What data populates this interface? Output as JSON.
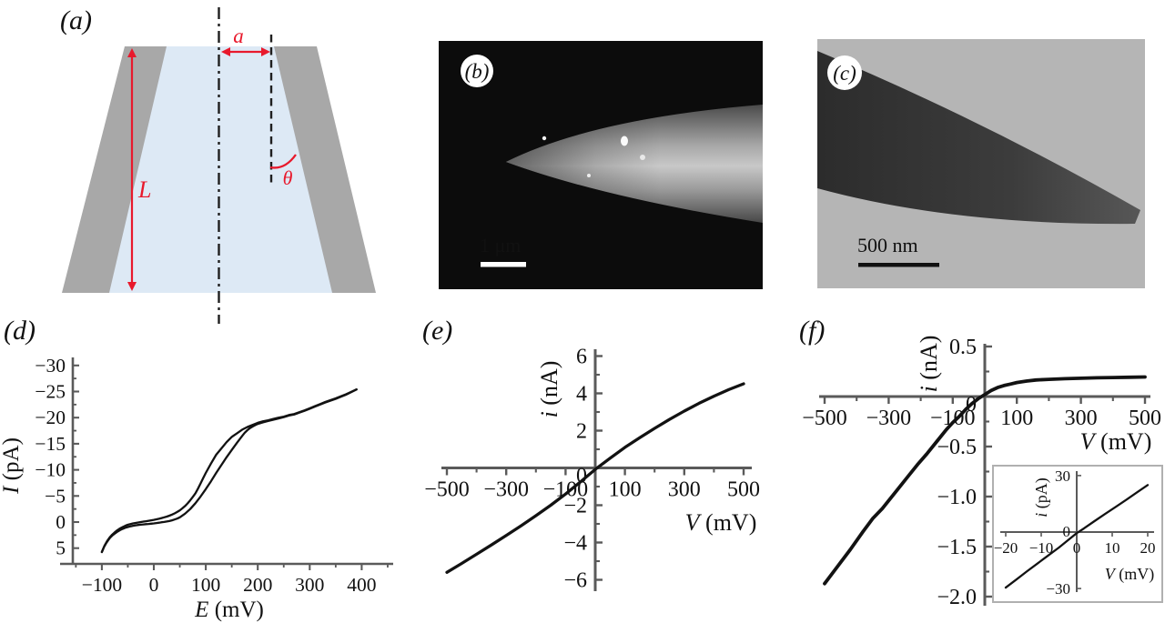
{
  "figure": {
    "description": "Six-panel nanopipette figure: schematic, SEM image, TEM image and three current-voltage plots",
    "colors": {
      "annotation_red": "#e8192c",
      "wall_gray": "#a8a8a8",
      "lumen_blue": "#dde9f5",
      "axis_gray": "#5a5a5a",
      "curve_black": "#121212",
      "sem_background": "#0c0c0c",
      "tem_background": "#b5b5b5"
    },
    "panel_a": {
      "label": "(a)",
      "radius_label": "a",
      "length_label": "L",
      "angle_label": "θ"
    },
    "panel_b": {
      "label": "(b)",
      "scale_bar_text": "1 μm"
    },
    "panel_c": {
      "label": "(c)",
      "scale_bar_text": "500 nm"
    },
    "panel_d": {
      "label": "(d)"
    },
    "panel_e": {
      "label": "(e)"
    },
    "panel_f": {
      "label": "(f)"
    }
  },
  "chart_data": [
    {
      "id": "d",
      "type": "line",
      "title": "",
      "xlabel": {
        "variable": "E",
        "unit": " (mV)"
      },
      "ylabel": {
        "variable": "I",
        "unit": " (pA)"
      },
      "x_axis": {
        "range": [
          -125,
          460
        ],
        "tick_values": [
          -100,
          0,
          100,
          200,
          300,
          400
        ],
        "tick_labels": [
          "−100",
          "0",
          "100",
          "200",
          "300",
          "400"
        ],
        "minor_tick_values": [
          -150,
          -50,
          50,
          150,
          250,
          350,
          450
        ]
      },
      "y_axis": {
        "range": [
          -30,
          5
        ],
        "inverted": true,
        "tick_values": [
          -30,
          -25,
          -20,
          -15,
          -10,
          -5,
          0,
          5
        ],
        "tick_labels": [
          "−30",
          "−25",
          "−20",
          "−15",
          "−10",
          "−5",
          "0",
          "5"
        ],
        "minor_tick_values": [
          -27.5,
          -22.5,
          -17.5,
          -12.5,
          -7.5,
          -2.5,
          2.5
        ]
      },
      "grid": false,
      "series": [
        {
          "name": "forward-sweep",
          "points": [
            [
              -100,
              5.75
            ],
            [
              -96,
              4.8
            ],
            [
              -92,
              4.1
            ],
            [
              -88,
              3.5
            ],
            [
              -84,
              3.0
            ],
            [
              -80,
              2.6
            ],
            [
              -75,
              2.2
            ],
            [
              -70,
              1.85
            ],
            [
              -65,
              1.55
            ],
            [
              -60,
              1.3
            ],
            [
              -55,
              1.1
            ],
            [
              -50,
              0.95
            ],
            [
              -45,
              0.82
            ],
            [
              -40,
              0.72
            ],
            [
              -35,
              0.63
            ],
            [
              -30,
              0.56
            ],
            [
              -25,
              0.5
            ],
            [
              -20,
              0.45
            ],
            [
              -15,
              0.4
            ],
            [
              -10,
              0.36
            ],
            [
              -5,
              0.32
            ],
            [
              0,
              0.27
            ],
            [
              5,
              0.2
            ],
            [
              10,
              0.12
            ],
            [
              15,
              0.04
            ],
            [
              20,
              -0.02
            ],
            [
              25,
              -0.1
            ],
            [
              30,
              -0.2
            ],
            [
              35,
              -0.33
            ],
            [
              40,
              -0.48
            ],
            [
              45,
              -0.67
            ],
            [
              50,
              -0.9
            ],
            [
              60,
              -1.6
            ],
            [
              70,
              -2.5
            ],
            [
              80,
              -3.6
            ],
            [
              90,
              -4.9
            ],
            [
              100,
              -6.3
            ],
            [
              110,
              -7.8
            ],
            [
              120,
              -9.4
            ],
            [
              130,
              -10.9
            ],
            [
              140,
              -12.4
            ],
            [
              150,
              -13.8
            ],
            [
              160,
              -15.2
            ],
            [
              170,
              -16.5
            ],
            [
              175,
              -17.1
            ],
            [
              180,
              -17.6
            ],
            [
              185,
              -18.0
            ],
            [
              190,
              -18.3
            ],
            [
              195,
              -18.55
            ],
            [
              200,
              -18.8
            ],
            [
              210,
              -19.1
            ],
            [
              220,
              -19.35
            ],
            [
              230,
              -19.6
            ],
            [
              240,
              -19.85
            ],
            [
              250,
              -20.1
            ],
            [
              260,
              -20.4
            ],
            [
              270,
              -20.6
            ],
            [
              280,
              -20.95
            ],
            [
              290,
              -21.3
            ],
            [
              300,
              -21.7
            ],
            [
              310,
              -22.1
            ],
            [
              320,
              -22.5
            ],
            [
              330,
              -22.9
            ],
            [
              340,
              -23.25
            ],
            [
              350,
              -23.6
            ],
            [
              360,
              -24.0
            ],
            [
              370,
              -24.4
            ],
            [
              380,
              -24.9
            ],
            [
              390,
              -25.4
            ]
          ]
        },
        {
          "name": "reverse-sweep",
          "points": [
            [
              -100,
              5.75
            ],
            [
              -95,
              4.55
            ],
            [
              -90,
              3.65
            ],
            [
              -85,
              2.95
            ],
            [
              -80,
              2.4
            ],
            [
              -75,
              1.95
            ],
            [
              -70,
              1.55
            ],
            [
              -65,
              1.22
            ],
            [
              -60,
              0.95
            ],
            [
              -55,
              0.72
            ],
            [
              -50,
              0.53
            ],
            [
              -45,
              0.38
            ],
            [
              -40,
              0.27
            ],
            [
              -35,
              0.17
            ],
            [
              -30,
              0.08
            ],
            [
              -25,
              0.0
            ],
            [
              -20,
              -0.08
            ],
            [
              -15,
              -0.16
            ],
            [
              -10,
              -0.25
            ],
            [
              -5,
              -0.33
            ],
            [
              0,
              -0.42
            ],
            [
              5,
              -0.52
            ],
            [
              10,
              -0.63
            ],
            [
              15,
              -0.76
            ],
            [
              20,
              -0.9
            ],
            [
              25,
              -1.05
            ],
            [
              30,
              -1.22
            ],
            [
              35,
              -1.42
            ],
            [
              40,
              -1.65
            ],
            [
              45,
              -1.93
            ],
            [
              50,
              -2.25
            ],
            [
              55,
              -2.63
            ],
            [
              60,
              -3.07
            ],
            [
              65,
              -3.58
            ],
            [
              70,
              -4.16
            ],
            [
              75,
              -4.8
            ],
            [
              80,
              -5.5
            ],
            [
              85,
              -6.4
            ],
            [
              90,
              -7.4
            ],
            [
              95,
              -8.4
            ],
            [
              100,
              -9.4
            ],
            [
              110,
              -11.2
            ],
            [
              120,
              -12.9
            ],
            [
              130,
              -14.1
            ],
            [
              140,
              -15.3
            ],
            [
              150,
              -16.3
            ],
            [
              160,
              -17.0
            ],
            [
              170,
              -17.7
            ],
            [
              180,
              -18.2
            ],
            [
              190,
              -18.6
            ],
            [
              200,
              -19.0
            ],
            [
              210,
              -19.3
            ],
            [
              220,
              -19.5
            ],
            [
              230,
              -19.75
            ],
            [
              240,
              -20.0
            ],
            [
              250,
              -20.2
            ],
            [
              260,
              -20.5
            ],
            [
              270,
              -20.7
            ],
            [
              280,
              -21.05
            ],
            [
              290,
              -21.4
            ],
            [
              300,
              -21.8
            ],
            [
              310,
              -22.2
            ],
            [
              320,
              -22.6
            ],
            [
              330,
              -23.0
            ],
            [
              340,
              -23.35
            ],
            [
              350,
              -23.7
            ],
            [
              360,
              -24.1
            ],
            [
              370,
              -24.5
            ],
            [
              380,
              -24.95
            ],
            [
              390,
              -25.4
            ]
          ]
        }
      ]
    },
    {
      "id": "e",
      "type": "line",
      "title": "",
      "xlabel": {
        "variable": "V",
        "unit": " (mV)"
      },
      "ylabel": {
        "variable": "i",
        "unit": " (nA)"
      },
      "x_axis": {
        "range": [
          -520,
          520
        ],
        "tick_values": [
          -500,
          -300,
          -100,
          100,
          300,
          500
        ],
        "tick_labels": [
          "−500",
          "−300",
          "−100",
          "100",
          "300",
          "500"
        ],
        "minor_tick_values": [
          -400,
          -200,
          200,
          400
        ]
      },
      "y_axis": {
        "range": [
          -6,
          6
        ],
        "inverted": false,
        "tick_values": [
          6,
          4,
          2,
          0,
          -2,
          -4,
          -6
        ],
        "tick_labels": [
          "6",
          "4",
          "2",
          "0",
          "−2",
          "−4",
          "−6"
        ],
        "minor_tick_values": [
          5,
          3,
          1,
          -1,
          -3,
          -5
        ]
      },
      "grid": false,
      "series": [
        {
          "name": "iv-curve",
          "points": [
            [
              -500,
              -5.6
            ],
            [
              -450,
              -5.12
            ],
            [
              -400,
              -4.63
            ],
            [
              -350,
              -4.13
            ],
            [
              -300,
              -3.62
            ],
            [
              -250,
              -3.1
            ],
            [
              -200,
              -2.56
            ],
            [
              -150,
              -2.0
            ],
            [
              -100,
              -1.4
            ],
            [
              -50,
              -0.75
            ],
            [
              0,
              -0.08
            ],
            [
              50,
              0.52
            ],
            [
              100,
              1.1
            ],
            [
              150,
              1.62
            ],
            [
              200,
              2.12
            ],
            [
              250,
              2.6
            ],
            [
              300,
              3.05
            ],
            [
              350,
              3.47
            ],
            [
              400,
              3.85
            ],
            [
              450,
              4.2
            ],
            [
              500,
              4.51
            ]
          ]
        }
      ]
    },
    {
      "id": "f",
      "type": "line",
      "title": "",
      "xlabel": {
        "variable": "V",
        "unit": " (mV)"
      },
      "ylabel": {
        "variable": "i",
        "unit": " (nA)"
      },
      "x_axis": {
        "range": [
          -520,
          520
        ],
        "tick_values": [
          -500,
          -300,
          -100,
          100,
          300,
          500
        ],
        "tick_labels": [
          "−500",
          "−300",
          "−100",
          "100",
          "300",
          "500"
        ],
        "minor_tick_values": [
          -400,
          -200,
          200,
          400
        ]
      },
      "y_axis": {
        "range": [
          -2.0,
          0.5
        ],
        "inverted": false,
        "tick_values": [
          0.5,
          0,
          -0.5,
          -1.0,
          -1.5,
          -2.0
        ],
        "tick_labels": [
          "0.5",
          "0",
          "−0.5",
          "−1.0",
          "−1.5",
          "−2.0"
        ],
        "minor_tick_values": [
          0.25,
          -0.25,
          -0.75,
          -1.25,
          -1.75
        ]
      },
      "grid": false,
      "series": [
        {
          "name": "rectifying-iv-curve",
          "points": [
            [
              -500,
              -1.87
            ],
            [
              -460,
              -1.7
            ],
            [
              -420,
              -1.53
            ],
            [
              -380,
              -1.35
            ],
            [
              -350,
              -1.22
            ],
            [
              -320,
              -1.12
            ],
            [
              -300,
              -1.04
            ],
            [
              -270,
              -0.92
            ],
            [
              -240,
              -0.8
            ],
            [
              -210,
              -0.68
            ],
            [
              -180,
              -0.57
            ],
            [
              -150,
              -0.45
            ],
            [
              -120,
              -0.33
            ],
            [
              -100,
              -0.26
            ],
            [
              -80,
              -0.2
            ],
            [
              -60,
              -0.13
            ],
            [
              -40,
              -0.07
            ],
            [
              -20,
              -0.02
            ],
            [
              0,
              0.02
            ],
            [
              20,
              0.06
            ],
            [
              40,
              0.09
            ],
            [
              60,
              0.11
            ],
            [
              80,
              0.125
            ],
            [
              100,
              0.14
            ],
            [
              130,
              0.155
            ],
            [
              160,
              0.165
            ],
            [
              200,
              0.172
            ],
            [
              250,
              0.178
            ],
            [
              300,
              0.183
            ],
            [
              350,
              0.187
            ],
            [
              400,
              0.19
            ],
            [
              450,
              0.193
            ],
            [
              500,
              0.195
            ]
          ]
        }
      ]
    },
    {
      "id": "f_inset",
      "type": "line",
      "title": "",
      "xlabel": {
        "variable": "V",
        "unit": " (mV)"
      },
      "ylabel": {
        "variable": "i",
        "unit": " (pA)"
      },
      "x_axis": {
        "range": [
          -21,
          21
        ],
        "tick_values": [
          -20,
          -10,
          0,
          10,
          20
        ],
        "tick_labels": [
          "−20",
          "−10",
          "0",
          "10",
          "20"
        ],
        "minor_tick_values": []
      },
      "y_axis": {
        "range": [
          -30,
          30
        ],
        "inverted": false,
        "tick_values": [
          30,
          0,
          -30
        ],
        "tick_labels": [
          "30",
          "0",
          "−30"
        ],
        "minor_tick_values": []
      },
      "grid": false,
      "series": [
        {
          "name": "low-voltage-iv-curve",
          "points": [
            [
              -20,
              -29.5
            ],
            [
              -17,
              -25.2
            ],
            [
              -14,
              -20.8
            ],
            [
              -11,
              -16.6
            ],
            [
              -8,
              -12.4
            ],
            [
              -5,
              -8.2
            ],
            [
              -2,
              -3.6
            ],
            [
              0,
              -0.6
            ],
            [
              2,
              1.9
            ],
            [
              5,
              5.8
            ],
            [
              8,
              9.6
            ],
            [
              11,
              13.4
            ],
            [
              14,
              17.2
            ],
            [
              17,
              21.1
            ],
            [
              20,
              25
            ]
          ]
        }
      ]
    }
  ]
}
